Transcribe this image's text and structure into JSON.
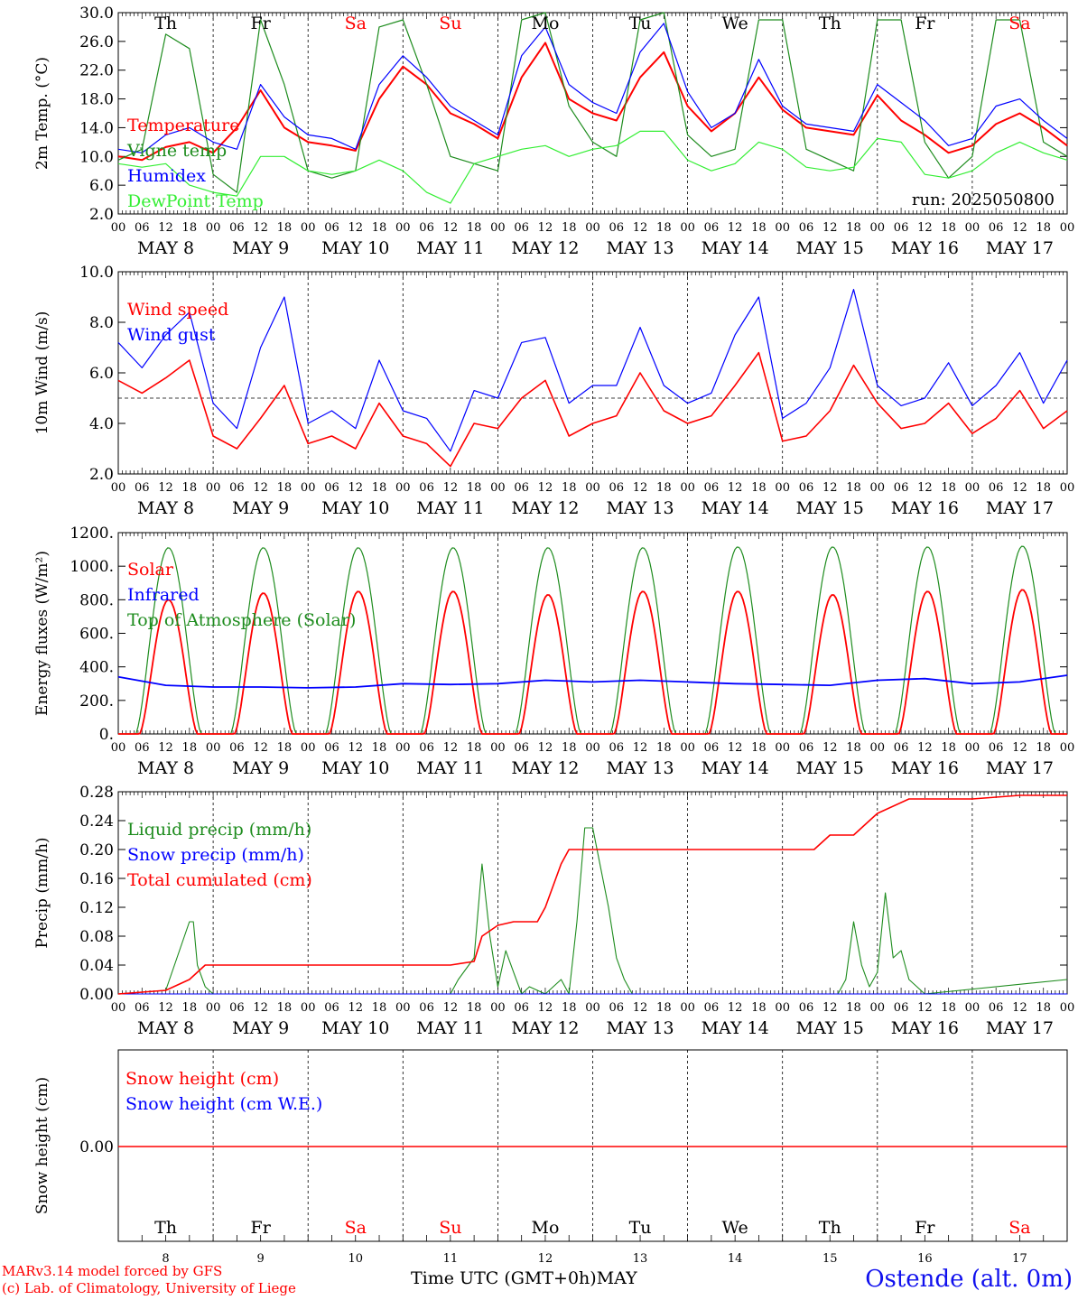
{
  "colors": {
    "red": "#ff0000",
    "blue": "#0000ff",
    "darkgreen": "#1e8c1e",
    "green": "#33ee33",
    "black": "#000000"
  },
  "day_abbrev": [
    "Th",
    "Fr",
    "Sa",
    "Su",
    "Mo",
    "Tu",
    "We",
    "Th",
    "Fr",
    "Sa"
  ],
  "day_abbrev_weekend": [
    false,
    false,
    true,
    true,
    false,
    false,
    false,
    false,
    false,
    true
  ],
  "date_labels": [
    "MAY  8",
    "MAY  9",
    "MAY 10",
    "MAY 11",
    "MAY 12",
    "MAY 13",
    "MAY 14",
    "MAY 15",
    "MAY 16",
    "MAY 17"
  ],
  "hour_ticks": [
    "00",
    "06",
    "12",
    "18"
  ],
  "bottom_day_numbers": [
    "8",
    "9",
    "10",
    "11",
    "12",
    "13",
    "14",
    "15",
    "16",
    "17"
  ],
  "footer": {
    "model": "MARv3.14 model forced by GFS",
    "copyright": "(c) Lab. of Climatology, University of Liege",
    "xlabel": "Time UTC (GMT+0h)",
    "month": "MAY",
    "station": "Ostende (alt. 0m)"
  },
  "chart_data": [
    {
      "type": "line",
      "ylabel": "2m Temp. (°C)",
      "ylim": [
        2,
        30
      ],
      "yticks": [
        "2.0",
        "6.0",
        "10.0",
        "14.0",
        "18.0",
        "22.0",
        "26.0",
        "30.0"
      ],
      "run_text": "run: 2025050800",
      "x_unit": "hours since MAY 8 00 UTC",
      "series": [
        {
          "name": "Temperature",
          "color": "red",
          "x": [
            0,
            6,
            12,
            18,
            24,
            30,
            36,
            42,
            48,
            54,
            60,
            66,
            72,
            78,
            84,
            90,
            96,
            102,
            108,
            114,
            120,
            126,
            132,
            138,
            144,
            150,
            156,
            162,
            168,
            174,
            180,
            186,
            192,
            198,
            204,
            210,
            216,
            222,
            228,
            234,
            240
          ],
          "y": [
            10,
            9.5,
            11.3,
            12,
            10.5,
            14,
            19.2,
            14,
            12,
            11.5,
            10.8,
            18,
            22.5,
            20,
            16,
            14.5,
            12.5,
            21,
            25.8,
            18,
            16,
            15,
            21,
            24.5,
            17,
            13.5,
            16,
            21,
            16.5,
            14,
            13.5,
            13,
            18.5,
            15,
            13,
            10.5,
            11.5,
            14.5,
            16,
            14,
            11.5
          ]
        },
        {
          "name": "Vigne temp",
          "color": "darkgreen",
          "x": [
            0,
            6,
            12,
            18,
            24,
            30,
            36,
            42,
            48,
            54,
            60,
            66,
            72,
            78,
            84,
            90,
            96,
            102,
            108,
            114,
            120,
            126,
            132,
            138,
            144,
            150,
            156,
            162,
            168,
            174,
            180,
            186,
            192,
            198,
            204,
            210,
            216,
            222,
            228,
            234,
            240
          ],
          "y": [
            9.5,
            11,
            27,
            25,
            7.5,
            5,
            29,
            20,
            8,
            7,
            8,
            28,
            29,
            20,
            10,
            9,
            8,
            29,
            30,
            17,
            12,
            10,
            29,
            30,
            13,
            10,
            11,
            29,
            29,
            11,
            9.5,
            8,
            29,
            29,
            12,
            7,
            10,
            29,
            29,
            12,
            10
          ]
        },
        {
          "name": "Humidex",
          "color": "blue",
          "x": [
            0,
            6,
            12,
            18,
            24,
            30,
            36,
            42,
            48,
            54,
            60,
            66,
            72,
            78,
            84,
            90,
            96,
            102,
            108,
            114,
            120,
            126,
            132,
            138,
            144,
            150,
            156,
            162,
            168,
            174,
            180,
            186,
            192,
            198,
            204,
            210,
            216,
            222,
            228,
            234,
            240
          ],
          "y": [
            11,
            10.5,
            13,
            14,
            12,
            11,
            20,
            15.5,
            13,
            12.5,
            11,
            20,
            24,
            21,
            17,
            15,
            13,
            24,
            28,
            20,
            17.5,
            16,
            24.5,
            28.5,
            19,
            14,
            16,
            23.5,
            17,
            14.5,
            14,
            13.5,
            20,
            17.5,
            15,
            11.5,
            12.5,
            17,
            18,
            15,
            12.5
          ]
        },
        {
          "name": "DewPoint Temp",
          "color": "green",
          "x": [
            0,
            6,
            12,
            18,
            24,
            30,
            36,
            42,
            48,
            54,
            60,
            66,
            72,
            78,
            84,
            90,
            96,
            102,
            108,
            114,
            120,
            126,
            132,
            138,
            144,
            150,
            156,
            162,
            168,
            174,
            180,
            186,
            192,
            198,
            204,
            210,
            216,
            222,
            228,
            234,
            240
          ],
          "y": [
            9,
            8.5,
            9,
            6,
            5,
            4.5,
            10,
            10,
            8,
            7.5,
            8,
            9.5,
            8,
            5,
            3.5,
            9,
            10,
            11,
            11.5,
            10,
            11,
            11.5,
            13.5,
            13.5,
            9.5,
            8,
            9,
            12,
            11,
            8.5,
            8,
            8.5,
            12.5,
            12,
            7.5,
            7,
            8,
            10.5,
            12,
            10.5,
            9.5
          ]
        }
      ]
    },
    {
      "type": "line",
      "ylabel": "10m Wind (m/s)",
      "ylim": [
        2,
        10
      ],
      "yticks": [
        "2.0",
        "4.0",
        "6.0",
        "8.0",
        "10.0"
      ],
      "reference_line": 5,
      "series": [
        {
          "name": "Wind speed",
          "color": "red",
          "x": [
            0,
            6,
            12,
            18,
            24,
            30,
            36,
            42,
            48,
            54,
            60,
            66,
            72,
            78,
            84,
            90,
            96,
            102,
            108,
            114,
            120,
            126,
            132,
            138,
            144,
            150,
            156,
            162,
            168,
            174,
            180,
            186,
            192,
            198,
            204,
            210,
            216,
            222,
            228,
            234,
            240
          ],
          "y": [
            5.7,
            5.2,
            5.8,
            6.5,
            3.5,
            3,
            4.2,
            5.5,
            3.2,
            3.5,
            3,
            4.8,
            3.5,
            3.2,
            2.3,
            4,
            3.8,
            5,
            5.7,
            3.5,
            4,
            4.3,
            6,
            4.5,
            4,
            4.3,
            5.5,
            6.8,
            3.3,
            3.5,
            4.5,
            6.3,
            4.8,
            3.8,
            4,
            4.8,
            3.6,
            4.2,
            5.3,
            3.8,
            4.5
          ]
        },
        {
          "name": "Wind gust",
          "color": "blue",
          "x": [
            0,
            6,
            12,
            18,
            24,
            30,
            36,
            42,
            48,
            54,
            60,
            66,
            72,
            78,
            84,
            90,
            96,
            102,
            108,
            114,
            120,
            126,
            132,
            138,
            144,
            150,
            156,
            162,
            168,
            174,
            180,
            186,
            192,
            198,
            204,
            210,
            216,
            222,
            228,
            234,
            240
          ],
          "y": [
            7.2,
            6.2,
            7.5,
            8.4,
            4.8,
            3.8,
            7,
            9,
            4,
            4.5,
            3.8,
            6.5,
            4.5,
            4.2,
            2.9,
            5.3,
            5,
            7.2,
            7.4,
            4.8,
            5.5,
            5.5,
            7.8,
            5.5,
            4.8,
            5.2,
            7.5,
            9,
            4.2,
            4.8,
            6.2,
            9.3,
            5.5,
            4.7,
            5,
            6.4,
            4.7,
            5.5,
            6.8,
            4.8,
            6.5
          ]
        }
      ]
    },
    {
      "type": "line",
      "ylabel": "Energy fluxes (W/m²)",
      "ylim": [
        0,
        1200
      ],
      "yticks": [
        "0.",
        "200.",
        "400.",
        "600.",
        "800.",
        "1000.",
        "1200."
      ],
      "series": [
        {
          "name": "Solar",
          "color": "red",
          "peak": [
            800,
            840,
            850,
            850,
            830,
            850,
            850,
            830,
            850,
            860
          ]
        },
        {
          "name": "Infrared",
          "color": "blue",
          "x": [
            0,
            12,
            24,
            36,
            48,
            60,
            72,
            84,
            96,
            108,
            120,
            132,
            144,
            156,
            168,
            180,
            192,
            204,
            216,
            228,
            240
          ],
          "y": [
            340,
            290,
            280,
            280,
            275,
            280,
            300,
            295,
            300,
            320,
            310,
            320,
            310,
            300,
            295,
            290,
            320,
            330,
            300,
            310,
            350
          ]
        },
        {
          "name": "Top of Atmosphere (Solar)",
          "color": "darkgreen",
          "peak": [
            1110,
            1110,
            1110,
            1110,
            1110,
            1110,
            1115,
            1115,
            1115,
            1120
          ]
        }
      ]
    },
    {
      "type": "line",
      "ylabel": "Precip (mm/h)",
      "ylim": [
        0,
        0.28
      ],
      "yticks": [
        "0.00",
        "0.04",
        "0.08",
        "0.12",
        "0.16",
        "0.20",
        "0.24",
        "0.28"
      ],
      "series": [
        {
          "name": "Liquid precip (mm/h)",
          "color": "darkgreen",
          "x": [
            0,
            12,
            18,
            19,
            20,
            22,
            24,
            30,
            60,
            84,
            86,
            90,
            92,
            94,
            96,
            98,
            100,
            102,
            104,
            108,
            112,
            114,
            116,
            118,
            120,
            124,
            126,
            128,
            130,
            132,
            180,
            182,
            184,
            186,
            188,
            190,
            192,
            194,
            196,
            198,
            200,
            202,
            204,
            240
          ],
          "y": [
            0,
            0.005,
            0.1,
            0.1,
            0.04,
            0.01,
            0,
            0,
            0,
            0,
            0.02,
            0.05,
            0.18,
            0.08,
            0.01,
            0.06,
            0.03,
            0,
            0.01,
            0,
            0.02,
            0,
            0.1,
            0.23,
            0.23,
            0.12,
            0.05,
            0.02,
            0,
            0,
            0,
            0,
            0.02,
            0.1,
            0.04,
            0.01,
            0.03,
            0.14,
            0.05,
            0.06,
            0.02,
            0.01,
            0,
            0.02
          ]
        },
        {
          "name": "Snow precip (mm/h)",
          "color": "blue",
          "x": [
            0,
            240
          ],
          "y": [
            0,
            0
          ]
        },
        {
          "name": "Total cumulated (cm)",
          "color": "red",
          "x": [
            0,
            12,
            18,
            22,
            24,
            60,
            84,
            90,
            92,
            96,
            100,
            106,
            108,
            112,
            114,
            120,
            132,
            156,
            168,
            176,
            178,
            180,
            186,
            190,
            192,
            200,
            216,
            228,
            240
          ],
          "y": [
            0,
            0.005,
            0.02,
            0.04,
            0.04,
            0.04,
            0.04,
            0.045,
            0.08,
            0.095,
            0.1,
            0.1,
            0.12,
            0.18,
            0.2,
            0.2,
            0.2,
            0.2,
            0.2,
            0.2,
            0.21,
            0.22,
            0.22,
            0.24,
            0.25,
            0.27,
            0.27,
            0.275,
            0.275
          ]
        }
      ]
    },
    {
      "type": "line",
      "ylabel": "Snow height (cm)",
      "yticks": [
        "0.00"
      ],
      "series": [
        {
          "name": "Snow height (cm)",
          "color": "red",
          "x": [
            0,
            240
          ],
          "y": [
            0,
            0
          ]
        },
        {
          "name": "Snow height (cm W.E.)",
          "color": "blue",
          "x": [
            0,
            240
          ],
          "y": [
            0,
            0
          ]
        }
      ]
    }
  ]
}
